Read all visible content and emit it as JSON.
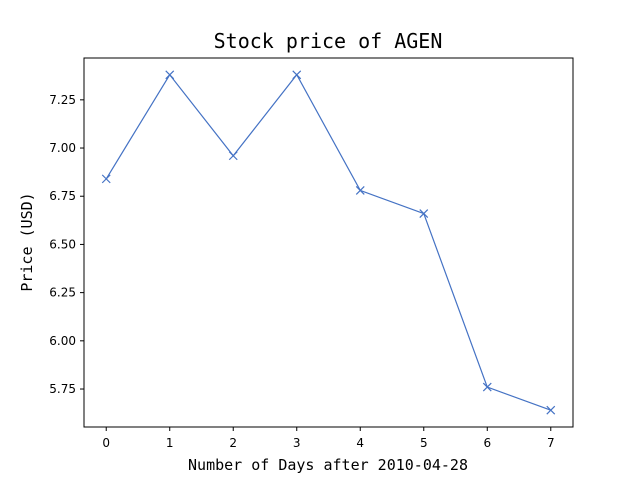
{
  "chart_data": {
    "type": "line",
    "title": "Stock price of AGEN",
    "xlabel": "Number of Days after 2010-04-28",
    "ylabel": "Price (USD)",
    "x": [
      0,
      1,
      2,
      3,
      4,
      5,
      6,
      7
    ],
    "series": [
      {
        "values": [
          6.84,
          7.38,
          6.96,
          7.38,
          6.78,
          6.66,
          5.76,
          5.64
        ],
        "color": "#4472c4",
        "marker": "x"
      }
    ],
    "xticks": [
      "0",
      "1",
      "2",
      "3",
      "4",
      "5",
      "6",
      "7"
    ],
    "yticks": [
      "5.75",
      "6.00",
      "6.25",
      "6.50",
      "6.75",
      "7.00",
      "7.25"
    ],
    "xlim": [
      -0.35,
      7.35
    ],
    "ylim": [
      5.553,
      7.467
    ],
    "grid": false
  }
}
